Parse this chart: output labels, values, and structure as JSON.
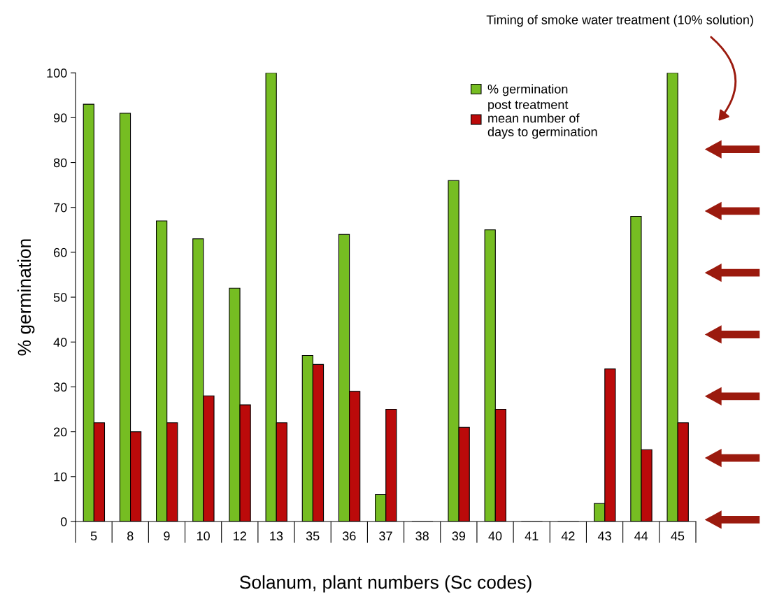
{
  "chart_data": {
    "type": "bar",
    "xlabel": "Solanum, plant numbers (Sc codes)",
    "ylabel": "% germination",
    "categories": [
      "5",
      "8",
      "9",
      "10",
      "12",
      "13",
      "35",
      "36",
      "37",
      "38",
      "39",
      "40",
      "41",
      "42",
      "43",
      "44",
      "45"
    ],
    "series": [
      {
        "name": "% germination",
        "color": "#76bd22",
        "values": [
          93,
          91,
          67,
          63,
          52,
          100,
          37,
          64,
          6,
          0,
          76,
          65,
          0,
          0,
          4,
          68,
          100
        ]
      },
      {
        "name": "post treatment\nmean number of\ndays to germination",
        "color": "#bb0a0a",
        "values": [
          22,
          20,
          22,
          28,
          26,
          22,
          35,
          29,
          25,
          0,
          21,
          25,
          0,
          0,
          34,
          16,
          22
        ]
      }
    ],
    "ylim": [
      0,
      100
    ],
    "yticks": [
      0,
      10,
      20,
      30,
      40,
      50,
      60,
      70,
      80,
      90,
      100
    ],
    "grid": false,
    "legend": "top right",
    "annotations": [
      "Timing of smoke water treatment (10% solution)"
    ]
  }
}
